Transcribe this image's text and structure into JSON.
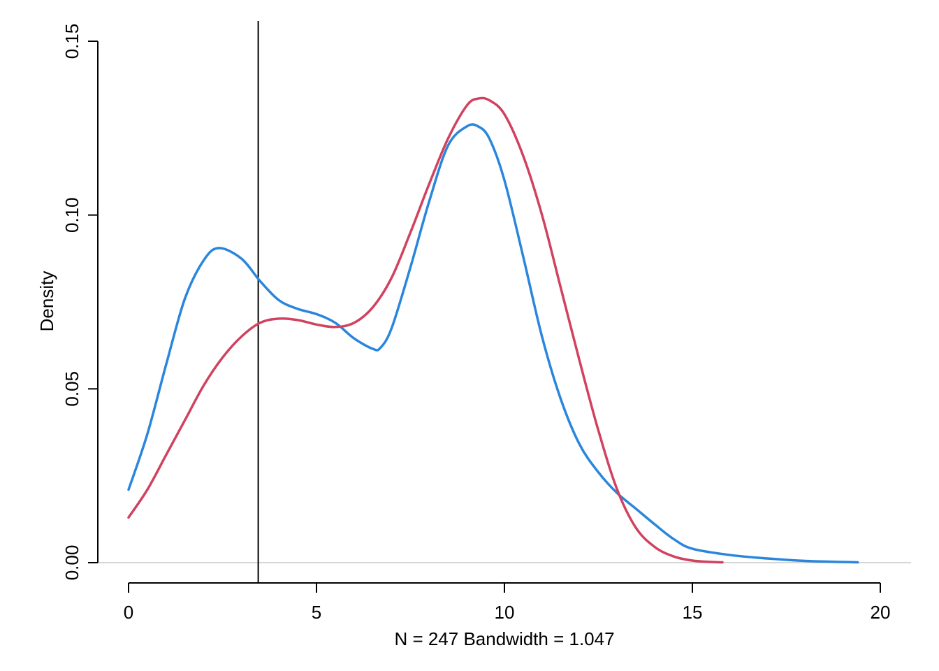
{
  "chart_data": {
    "type": "line",
    "title": "",
    "xlabel": "N = 247   Bandwidth = 1.047",
    "ylabel": "Density",
    "xlim": [
      0,
      20
    ],
    "ylim": [
      0,
      0.15
    ],
    "x_ticks": [
      0,
      5,
      10,
      15,
      20
    ],
    "x_tick_labels": [
      "0",
      "5",
      "10",
      "15",
      "20"
    ],
    "y_ticks": [
      0,
      0.05,
      0.1,
      0.15
    ],
    "y_tick_labels": [
      "0.00",
      "0.05",
      "0.10",
      "0.15"
    ],
    "grid": false,
    "baseline_y": 0,
    "vline_x": 3.45,
    "series": [
      {
        "color": "#2a86dc",
        "x": [
          0,
          0.5,
          1,
          1.5,
          2,
          2.4,
          3,
          3.5,
          4,
          4.5,
          5,
          5.5,
          6,
          6.5,
          6.7,
          7,
          7.5,
          8,
          8.5,
          9,
          9.3,
          9.6,
          10,
          10.5,
          11,
          11.5,
          12,
          12.5,
          13,
          13.5,
          14,
          14.5,
          15,
          16,
          17,
          18,
          19,
          19.4
        ],
        "y": [
          0.021,
          0.037,
          0.057,
          0.076,
          0.087,
          0.0905,
          0.0875,
          0.081,
          0.0755,
          0.073,
          0.0715,
          0.069,
          0.0645,
          0.0615,
          0.0618,
          0.0675,
          0.085,
          0.104,
          0.12,
          0.1255,
          0.1255,
          0.122,
          0.11,
          0.088,
          0.065,
          0.047,
          0.034,
          0.026,
          0.02,
          0.0155,
          0.011,
          0.0068,
          0.004,
          0.0022,
          0.0012,
          0.0005,
          0.0002,
          0.0001
        ]
      },
      {
        "color": "#d0425f",
        "x": [
          0,
          0.5,
          1,
          1.5,
          2,
          2.5,
          3,
          3.5,
          4,
          4.5,
          5,
          5.5,
          6,
          6.5,
          7,
          7.5,
          8,
          8.5,
          9,
          9.3,
          9.6,
          10,
          10.5,
          11,
          11.5,
          12,
          12.5,
          13,
          13.5,
          14,
          14.5,
          15,
          15.5,
          15.8
        ],
        "y": [
          0.013,
          0.021,
          0.031,
          0.041,
          0.051,
          0.059,
          0.065,
          0.069,
          0.0702,
          0.0698,
          0.0685,
          0.0678,
          0.069,
          0.0735,
          0.082,
          0.095,
          0.109,
          0.122,
          0.1315,
          0.1335,
          0.133,
          0.129,
          0.117,
          0.1,
          0.079,
          0.058,
          0.038,
          0.021,
          0.01,
          0.0045,
          0.0018,
          0.0006,
          0.0002,
          0.0001
        ]
      }
    ]
  }
}
